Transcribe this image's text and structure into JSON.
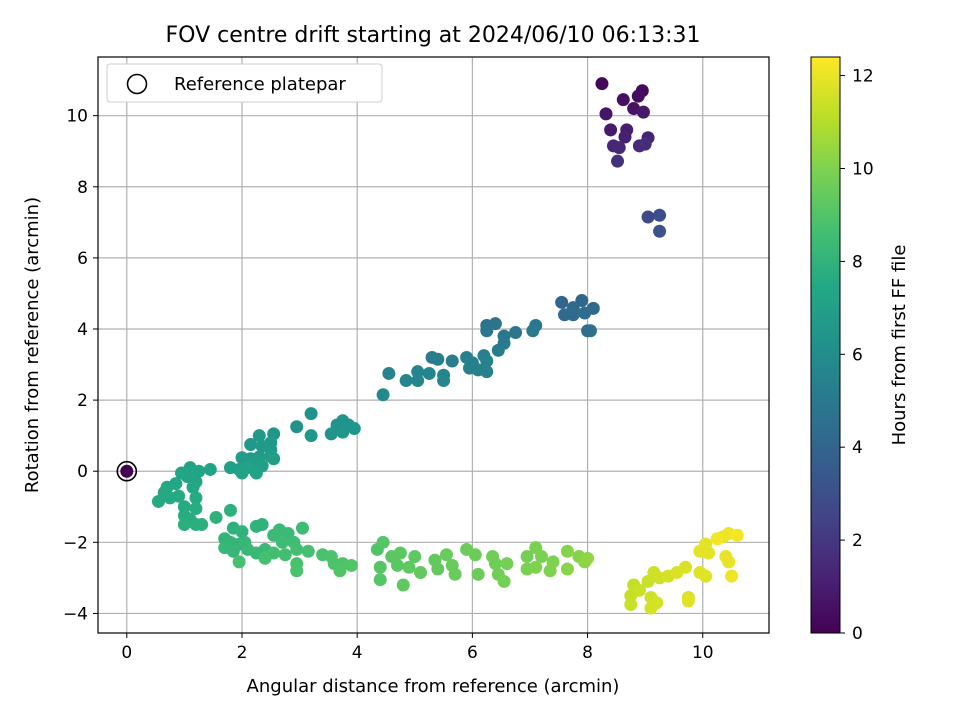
{
  "chart_data": {
    "type": "scatter",
    "title": "FOV centre drift starting at 2024/06/10 06:13:31",
    "xlabel": "Angular distance from reference (arcmin)",
    "ylabel": "Rotation from reference (arcmin)",
    "xlim": [
      -0.5,
      11.15
    ],
    "ylim": [
      -4.55,
      11.65
    ],
    "xticks": [
      0,
      2,
      4,
      6,
      8,
      10
    ],
    "yticks": [
      -4,
      -2,
      0,
      2,
      4,
      6,
      8,
      10
    ],
    "grid": true,
    "legend": {
      "placement": "top-left",
      "entries": [
        "Reference platepar"
      ]
    },
    "reference_point": {
      "x": 0,
      "y": 0
    },
    "colorbar": {
      "label": "Hours from first FF file",
      "colormap": "viridis",
      "range": [
        0,
        12.4
      ],
      "ticks": [
        0,
        2,
        4,
        6,
        8,
        10,
        12
      ]
    },
    "points": [
      {
        "x": 0.0,
        "y": 0.0,
        "h": 0.0
      },
      {
        "x": 8.25,
        "y": 10.9,
        "h": 0.2
      },
      {
        "x": 8.95,
        "y": 10.7,
        "h": 0.3
      },
      {
        "x": 8.88,
        "y": 10.55,
        "h": 0.4
      },
      {
        "x": 8.62,
        "y": 10.45,
        "h": 0.5
      },
      {
        "x": 8.8,
        "y": 10.2,
        "h": 0.6
      },
      {
        "x": 8.32,
        "y": 10.05,
        "h": 0.7
      },
      {
        "x": 8.97,
        "y": 10.1,
        "h": 0.8
      },
      {
        "x": 8.4,
        "y": 9.6,
        "h": 0.9
      },
      {
        "x": 8.68,
        "y": 9.6,
        "h": 1.0
      },
      {
        "x": 8.65,
        "y": 9.4,
        "h": 1.1
      },
      {
        "x": 9.05,
        "y": 9.38,
        "h": 1.2
      },
      {
        "x": 8.45,
        "y": 9.15,
        "h": 1.3
      },
      {
        "x": 8.55,
        "y": 9.1,
        "h": 1.4
      },
      {
        "x": 8.9,
        "y": 9.15,
        "h": 1.5
      },
      {
        "x": 9.0,
        "y": 9.2,
        "h": 1.6
      },
      {
        "x": 8.52,
        "y": 8.72,
        "h": 1.7
      },
      {
        "x": 9.05,
        "y": 7.15,
        "h": 2.7
      },
      {
        "x": 9.25,
        "y": 7.2,
        "h": 2.9
      },
      {
        "x": 9.25,
        "y": 6.75,
        "h": 3.1
      },
      {
        "x": 7.55,
        "y": 4.75,
        "h": 4.0
      },
      {
        "x": 7.9,
        "y": 4.8,
        "h": 4.1
      },
      {
        "x": 7.75,
        "y": 4.6,
        "h": 4.2
      },
      {
        "x": 8.1,
        "y": 4.58,
        "h": 4.2
      },
      {
        "x": 7.6,
        "y": 4.4,
        "h": 4.3
      },
      {
        "x": 7.75,
        "y": 4.4,
        "h": 4.3
      },
      {
        "x": 7.95,
        "y": 4.45,
        "h": 4.4
      },
      {
        "x": 8.0,
        "y": 3.95,
        "h": 4.4
      },
      {
        "x": 8.05,
        "y": 3.95,
        "h": 4.5
      },
      {
        "x": 6.25,
        "y": 4.1,
        "h": 4.7
      },
      {
        "x": 6.4,
        "y": 4.15,
        "h": 4.7
      },
      {
        "x": 7.1,
        "y": 4.1,
        "h": 4.8
      },
      {
        "x": 6.25,
        "y": 3.95,
        "h": 4.8
      },
      {
        "x": 6.55,
        "y": 3.8,
        "h": 4.9
      },
      {
        "x": 6.75,
        "y": 3.9,
        "h": 4.9
      },
      {
        "x": 7.05,
        "y": 3.95,
        "h": 5.0
      },
      {
        "x": 6.55,
        "y": 3.6,
        "h": 5.0
      },
      {
        "x": 6.45,
        "y": 3.4,
        "h": 5.1
      },
      {
        "x": 5.3,
        "y": 3.2,
        "h": 5.1
      },
      {
        "x": 5.4,
        "y": 3.15,
        "h": 5.2
      },
      {
        "x": 5.65,
        "y": 3.1,
        "h": 5.2
      },
      {
        "x": 5.9,
        "y": 3.2,
        "h": 5.3
      },
      {
        "x": 6.0,
        "y": 3.05,
        "h": 5.3
      },
      {
        "x": 6.2,
        "y": 3.25,
        "h": 5.3
      },
      {
        "x": 5.95,
        "y": 2.9,
        "h": 5.4
      },
      {
        "x": 6.1,
        "y": 2.85,
        "h": 5.4
      },
      {
        "x": 6.25,
        "y": 2.8,
        "h": 5.4
      },
      {
        "x": 6.25,
        "y": 3.1,
        "h": 5.5
      },
      {
        "x": 4.55,
        "y": 2.75,
        "h": 5.5
      },
      {
        "x": 5.05,
        "y": 2.8,
        "h": 5.6
      },
      {
        "x": 5.25,
        "y": 2.75,
        "h": 5.6
      },
      {
        "x": 5.5,
        "y": 2.7,
        "h": 5.6
      },
      {
        "x": 4.85,
        "y": 2.55,
        "h": 5.7
      },
      {
        "x": 5.05,
        "y": 2.55,
        "h": 5.7
      },
      {
        "x": 5.5,
        "y": 2.55,
        "h": 5.7
      },
      {
        "x": 4.45,
        "y": 2.15,
        "h": 5.8
      },
      {
        "x": 3.2,
        "y": 1.62,
        "h": 6.2
      },
      {
        "x": 2.95,
        "y": 1.25,
        "h": 6.3
      },
      {
        "x": 3.65,
        "y": 1.3,
        "h": 6.3
      },
      {
        "x": 3.75,
        "y": 1.42,
        "h": 6.3
      },
      {
        "x": 3.85,
        "y": 1.3,
        "h": 6.4
      },
      {
        "x": 3.95,
        "y": 1.2,
        "h": 6.4
      },
      {
        "x": 3.55,
        "y": 1.05,
        "h": 6.4
      },
      {
        "x": 3.75,
        "y": 1.1,
        "h": 6.5
      },
      {
        "x": 3.2,
        "y": 1.0,
        "h": 6.5
      },
      {
        "x": 2.55,
        "y": 1.05,
        "h": 6.5
      },
      {
        "x": 2.3,
        "y": 1.0,
        "h": 6.6
      },
      {
        "x": 2.5,
        "y": 0.8,
        "h": 6.6
      },
      {
        "x": 2.15,
        "y": 0.75,
        "h": 6.6
      },
      {
        "x": 2.35,
        "y": 0.7,
        "h": 6.7
      },
      {
        "x": 2.5,
        "y": 0.6,
        "h": 6.7
      },
      {
        "x": 2.0,
        "y": 0.38,
        "h": 6.8
      },
      {
        "x": 2.15,
        "y": 0.35,
        "h": 6.8
      },
      {
        "x": 2.3,
        "y": 0.4,
        "h": 6.8
      },
      {
        "x": 2.5,
        "y": 0.42,
        "h": 6.9
      },
      {
        "x": 2.55,
        "y": 0.35,
        "h": 6.9
      },
      {
        "x": 2.2,
        "y": 0.2,
        "h": 6.9
      },
      {
        "x": 2.35,
        "y": 0.15,
        "h": 7.0
      },
      {
        "x": 1.8,
        "y": 0.1,
        "h": 7.0
      },
      {
        "x": 1.95,
        "y": 0.05,
        "h": 7.0
      },
      {
        "x": 2.1,
        "y": 0.1,
        "h": 7.1
      },
      {
        "x": 2.0,
        "y": -0.05,
        "h": 7.1
      },
      {
        "x": 2.25,
        "y": -0.05,
        "h": 7.1
      },
      {
        "x": 1.45,
        "y": 0.05,
        "h": 7.2
      },
      {
        "x": 1.1,
        "y": 0.1,
        "h": 7.2
      },
      {
        "x": 1.25,
        "y": 0.0,
        "h": 7.2
      },
      {
        "x": 0.95,
        "y": -0.05,
        "h": 7.3
      },
      {
        "x": 1.05,
        "y": -0.15,
        "h": 7.3
      },
      {
        "x": 1.2,
        "y": -0.3,
        "h": 7.3
      },
      {
        "x": 0.85,
        "y": -0.35,
        "h": 7.4
      },
      {
        "x": 1.15,
        "y": -0.45,
        "h": 7.4
      },
      {
        "x": 0.7,
        "y": -0.45,
        "h": 7.4
      },
      {
        "x": 0.65,
        "y": -0.6,
        "h": 7.5
      },
      {
        "x": 0.75,
        "y": -0.75,
        "h": 7.5
      },
      {
        "x": 0.55,
        "y": -0.85,
        "h": 7.5
      },
      {
        "x": 0.9,
        "y": -0.7,
        "h": 7.6
      },
      {
        "x": 1.2,
        "y": -0.75,
        "h": 7.6
      },
      {
        "x": 1.0,
        "y": -1.0,
        "h": 7.6
      },
      {
        "x": 1.2,
        "y": -1.05,
        "h": 7.7
      },
      {
        "x": 1.0,
        "y": -1.25,
        "h": 7.7
      },
      {
        "x": 1.1,
        "y": -1.35,
        "h": 7.7
      },
      {
        "x": 1.0,
        "y": -1.5,
        "h": 7.8
      },
      {
        "x": 1.2,
        "y": -1.5,
        "h": 7.8
      },
      {
        "x": 1.3,
        "y": -1.5,
        "h": 7.8
      },
      {
        "x": 1.55,
        "y": -1.3,
        "h": 7.9
      },
      {
        "x": 1.8,
        "y": -1.1,
        "h": 7.9
      },
      {
        "x": 1.85,
        "y": -1.6,
        "h": 7.9
      },
      {
        "x": 2.0,
        "y": -1.7,
        "h": 8.0
      },
      {
        "x": 2.25,
        "y": -1.55,
        "h": 8.0
      },
      {
        "x": 2.35,
        "y": -1.5,
        "h": 8.0
      },
      {
        "x": 1.7,
        "y": -1.9,
        "h": 8.1
      },
      {
        "x": 1.8,
        "y": -2.0,
        "h": 8.1
      },
      {
        "x": 1.95,
        "y": -2.05,
        "h": 8.1
      },
      {
        "x": 2.05,
        "y": -2.0,
        "h": 8.2
      },
      {
        "x": 1.7,
        "y": -2.15,
        "h": 8.2
      },
      {
        "x": 1.85,
        "y": -2.25,
        "h": 8.2
      },
      {
        "x": 2.1,
        "y": -2.2,
        "h": 8.3
      },
      {
        "x": 2.25,
        "y": -2.3,
        "h": 8.3
      },
      {
        "x": 2.4,
        "y": -2.2,
        "h": 8.3
      },
      {
        "x": 2.65,
        "y": -1.65,
        "h": 8.4
      },
      {
        "x": 2.8,
        "y": -1.75,
        "h": 8.4
      },
      {
        "x": 2.55,
        "y": -1.8,
        "h": 8.4
      },
      {
        "x": 2.7,
        "y": -2.0,
        "h": 8.5
      },
      {
        "x": 2.9,
        "y": -2.0,
        "h": 8.5
      },
      {
        "x": 3.05,
        "y": -1.6,
        "h": 8.5
      },
      {
        "x": 2.55,
        "y": -2.3,
        "h": 8.6
      },
      {
        "x": 2.75,
        "y": -2.35,
        "h": 8.6
      },
      {
        "x": 2.95,
        "y": -2.2,
        "h": 8.6
      },
      {
        "x": 3.15,
        "y": -2.25,
        "h": 8.7
      },
      {
        "x": 2.4,
        "y": -2.45,
        "h": 8.7
      },
      {
        "x": 1.95,
        "y": -2.55,
        "h": 8.7
      },
      {
        "x": 2.95,
        "y": -2.6,
        "h": 8.8
      },
      {
        "x": 2.95,
        "y": -2.8,
        "h": 8.8
      },
      {
        "x": 3.4,
        "y": -2.35,
        "h": 8.8
      },
      {
        "x": 3.55,
        "y": -2.4,
        "h": 8.9
      },
      {
        "x": 3.6,
        "y": -2.6,
        "h": 8.9
      },
      {
        "x": 3.75,
        "y": -2.6,
        "h": 8.9
      },
      {
        "x": 3.7,
        "y": -2.8,
        "h": 9.0
      },
      {
        "x": 3.9,
        "y": -2.65,
        "h": 9.0
      },
      {
        "x": 4.35,
        "y": -2.2,
        "h": 9.0
      },
      {
        "x": 4.45,
        "y": -2.0,
        "h": 9.1
      },
      {
        "x": 4.4,
        "y": -2.7,
        "h": 9.1
      },
      {
        "x": 4.4,
        "y": -3.05,
        "h": 9.1
      },
      {
        "x": 4.6,
        "y": -2.4,
        "h": 9.2
      },
      {
        "x": 4.75,
        "y": -2.3,
        "h": 9.2
      },
      {
        "x": 4.7,
        "y": -2.65,
        "h": 9.2
      },
      {
        "x": 4.9,
        "y": -2.7,
        "h": 9.3
      },
      {
        "x": 5.0,
        "y": -2.4,
        "h": 9.3
      },
      {
        "x": 4.8,
        "y": -3.2,
        "h": 9.3
      },
      {
        "x": 5.1,
        "y": -2.85,
        "h": 9.4
      },
      {
        "x": 5.35,
        "y": -2.5,
        "h": 9.4
      },
      {
        "x": 5.4,
        "y": -2.75,
        "h": 9.4
      },
      {
        "x": 5.65,
        "y": -2.65,
        "h": 9.5
      },
      {
        "x": 5.7,
        "y": -2.9,
        "h": 9.5
      },
      {
        "x": 5.55,
        "y": -2.35,
        "h": 9.5
      },
      {
        "x": 5.9,
        "y": -2.2,
        "h": 9.6
      },
      {
        "x": 6.05,
        "y": -2.35,
        "h": 9.6
      },
      {
        "x": 6.1,
        "y": -2.9,
        "h": 9.6
      },
      {
        "x": 6.35,
        "y": -2.4,
        "h": 9.7
      },
      {
        "x": 6.4,
        "y": -2.6,
        "h": 9.7
      },
      {
        "x": 6.45,
        "y": -2.9,
        "h": 9.7
      },
      {
        "x": 6.6,
        "y": -2.6,
        "h": 9.8
      },
      {
        "x": 6.55,
        "y": -3.1,
        "h": 9.8
      },
      {
        "x": 6.95,
        "y": -2.4,
        "h": 9.8
      },
      {
        "x": 6.95,
        "y": -2.75,
        "h": 9.9
      },
      {
        "x": 7.1,
        "y": -2.15,
        "h": 9.9
      },
      {
        "x": 7.2,
        "y": -2.4,
        "h": 9.9
      },
      {
        "x": 7.1,
        "y": -2.7,
        "h": 10.0
      },
      {
        "x": 7.35,
        "y": -2.8,
        "h": 10.0
      },
      {
        "x": 7.4,
        "y": -2.55,
        "h": 10.0
      },
      {
        "x": 7.65,
        "y": -2.25,
        "h": 10.1
      },
      {
        "x": 7.85,
        "y": -2.4,
        "h": 10.1
      },
      {
        "x": 7.65,
        "y": -2.75,
        "h": 10.2
      },
      {
        "x": 7.95,
        "y": -2.55,
        "h": 10.2
      },
      {
        "x": 8.0,
        "y": -2.45,
        "h": 10.3
      },
      {
        "x": 8.8,
        "y": -3.2,
        "h": 11.3
      },
      {
        "x": 8.75,
        "y": -3.5,
        "h": 11.3
      },
      {
        "x": 8.9,
        "y": -3.35,
        "h": 11.4
      },
      {
        "x": 8.75,
        "y": -3.75,
        "h": 11.4
      },
      {
        "x": 9.05,
        "y": -3.1,
        "h": 11.4
      },
      {
        "x": 9.15,
        "y": -2.85,
        "h": 11.5
      },
      {
        "x": 9.25,
        "y": -3.0,
        "h": 11.5
      },
      {
        "x": 9.1,
        "y": -3.55,
        "h": 11.5
      },
      {
        "x": 9.2,
        "y": -3.7,
        "h": 11.6
      },
      {
        "x": 9.1,
        "y": -3.85,
        "h": 11.6
      },
      {
        "x": 9.4,
        "y": -2.95,
        "h": 11.6
      },
      {
        "x": 9.55,
        "y": -2.85,
        "h": 11.7
      },
      {
        "x": 9.7,
        "y": -2.7,
        "h": 11.7
      },
      {
        "x": 9.75,
        "y": -3.55,
        "h": 11.7
      },
      {
        "x": 9.75,
        "y": -3.65,
        "h": 11.8
      },
      {
        "x": 9.95,
        "y": -2.85,
        "h": 11.8
      },
      {
        "x": 10.05,
        "y": -2.95,
        "h": 11.8
      },
      {
        "x": 9.95,
        "y": -2.25,
        "h": 11.9
      },
      {
        "x": 10.05,
        "y": -2.05,
        "h": 11.9
      },
      {
        "x": 10.1,
        "y": -2.3,
        "h": 11.9
      },
      {
        "x": 10.35,
        "y": -1.85,
        "h": 12.0
      },
      {
        "x": 10.4,
        "y": -2.4,
        "h": 12.0
      },
      {
        "x": 10.45,
        "y": -2.55,
        "h": 12.0
      },
      {
        "x": 10.5,
        "y": -2.95,
        "h": 12.1
      },
      {
        "x": 10.45,
        "y": -1.75,
        "h": 12.1
      },
      {
        "x": 10.6,
        "y": -1.8,
        "h": 12.2
      },
      {
        "x": 10.25,
        "y": -1.9,
        "h": 12.2
      }
    ]
  }
}
